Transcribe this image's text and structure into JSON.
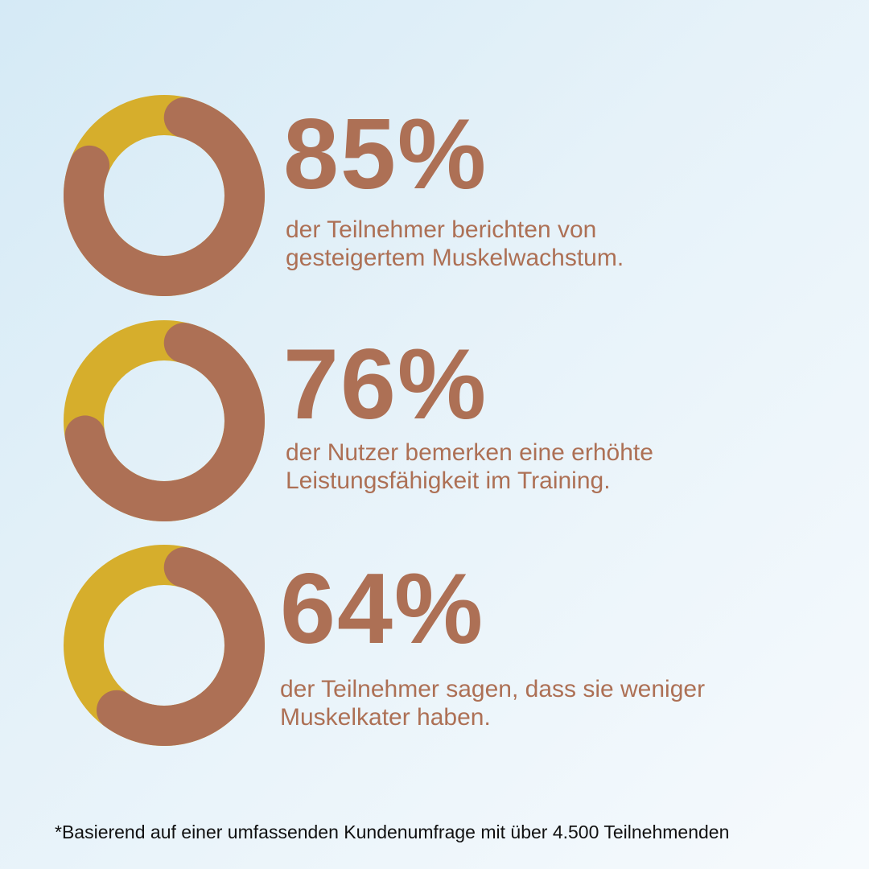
{
  "colors": {
    "primary": "#ad7055",
    "accent": "#d6ae2c",
    "text": "#ad7055",
    "footnote": "#111111"
  },
  "chart_data": [
    {
      "type": "pie",
      "value": 85,
      "unit": "%",
      "label": "85%",
      "description_line1": "der Teilnehmer berichten von",
      "description_line2": "gesteigertem Muskelwachstum."
    },
    {
      "type": "pie",
      "value": 76,
      "unit": "%",
      "label": "76%",
      "description_line1": "der Nutzer bemerken eine erhöhte",
      "description_line2": "Leistungsfähigkeit im Training."
    },
    {
      "type": "pie",
      "value": 64,
      "unit": "%",
      "label": "64%",
      "description_line1": "der Teilnehmer sagen, dass sie weniger",
      "description_line2": "Muskelkater haben."
    }
  ],
  "footnote": "*Basierend auf einer umfassenden Kundenumfrage mit über 4.500 Teilnehmenden"
}
